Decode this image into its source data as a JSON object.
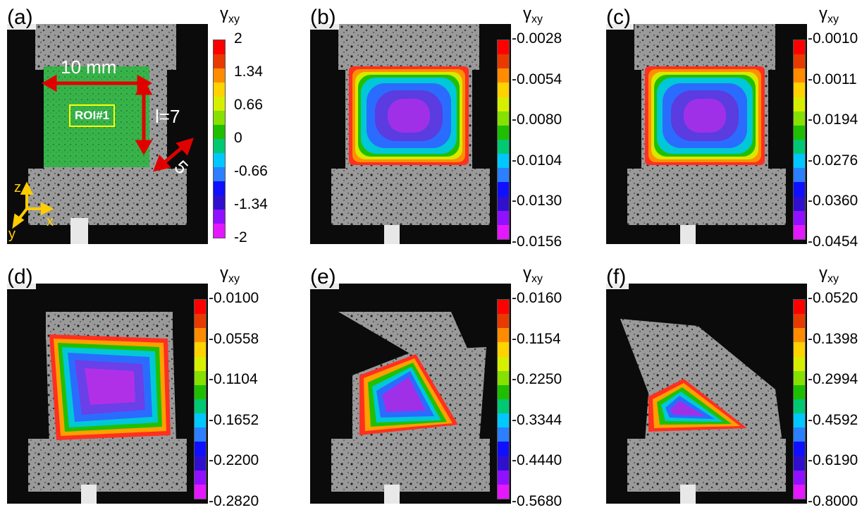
{
  "colormap": [
    "#ff0000",
    "#e83a00",
    "#ff8c00",
    "#ffd200",
    "#d6ef00",
    "#86e000",
    "#1ebf00",
    "#00c873",
    "#00c8ff",
    "#2c7fff",
    "#1010ff",
    "#3010cc",
    "#9010ff",
    "#e418ff"
  ],
  "panels": [
    {
      "label": "(a)",
      "cbar_title": "γ",
      "cbar_sub": "xy",
      "ticks": [
        "2",
        "1.34",
        "0.66",
        "0",
        "-0.66",
        "-1.34",
        "-2"
      ]
    },
    {
      "label": "(b)",
      "cbar_title": "γ",
      "cbar_sub": "xy",
      "ticks": [
        "-0.0028",
        "-0.0054",
        "-0.0080",
        "-0.0104",
        "-0.0130",
        "-0.0156"
      ]
    },
    {
      "label": "(c)",
      "cbar_title": "γ",
      "cbar_sub": "xy",
      "ticks": [
        "-0.0010",
        "-0.0011",
        "-0.0194",
        "-0.0276",
        "-0.0360",
        "-0.0454"
      ]
    },
    {
      "label": "(d)",
      "cbar_title": "γ",
      "cbar_sub": "xy",
      "ticks": [
        "-0.0100",
        "-0.0558",
        "-0.1104",
        "-0.1652",
        "-0.2200",
        "-0.2820"
      ]
    },
    {
      "label": "(e)",
      "cbar_title": "γ",
      "cbar_sub": "xy",
      "ticks": [
        "-0.0160",
        "-0.1154",
        "-0.2250",
        "-0.3344",
        "-0.4440",
        "-0.5680"
      ]
    },
    {
      "label": "(f)",
      "cbar_title": "γ",
      "cbar_sub": "xy",
      "ticks": [
        "-0.0520",
        "-0.1398",
        "-0.2994",
        "-0.4592",
        "-0.6190",
        "-0.8000"
      ]
    }
  ],
  "annotations": {
    "width_label": "10 mm",
    "height_label": "l=7",
    "depth_label": "5",
    "roi_label": "ROI#1",
    "axis_z": "z",
    "axis_x": "x",
    "axis_y": "y"
  }
}
